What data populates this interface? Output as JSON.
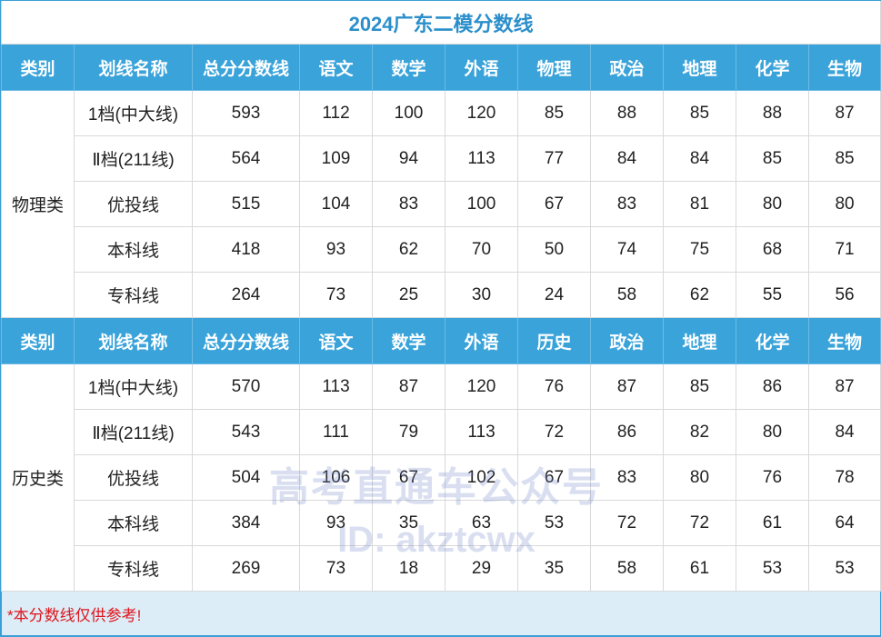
{
  "title": "2024广东二模分数线",
  "sections": [
    {
      "header": [
        "类别",
        "划线名称",
        "总分分数线",
        "语文",
        "数学",
        "外语",
        "物理",
        "政治",
        "地理",
        "化学",
        "生物"
      ],
      "category": "物理类",
      "rows": [
        [
          "1档(中大线)",
          593,
          112,
          100,
          120,
          85,
          88,
          85,
          88,
          87
        ],
        [
          "Ⅱ档(211线)",
          564,
          109,
          94,
          113,
          77,
          84,
          84,
          85,
          85
        ],
        [
          "优投线",
          515,
          104,
          83,
          100,
          67,
          83,
          81,
          80,
          80
        ],
        [
          "本科线",
          418,
          93,
          62,
          70,
          50,
          74,
          75,
          68,
          71
        ],
        [
          "专科线",
          264,
          73,
          25,
          30,
          24,
          58,
          62,
          55,
          56
        ]
      ]
    },
    {
      "header": [
        "类别",
        "划线名称",
        "总分分数线",
        "语文",
        "数学",
        "外语",
        "历史",
        "政治",
        "地理",
        "化学",
        "生物"
      ],
      "category": "历史类",
      "rows": [
        [
          "1档(中大线)",
          570,
          113,
          87,
          120,
          76,
          87,
          85,
          86,
          87
        ],
        [
          "Ⅱ档(211线)",
          543,
          111,
          79,
          113,
          72,
          86,
          82,
          80,
          84
        ],
        [
          "优投线",
          504,
          106,
          67,
          102,
          67,
          83,
          80,
          76,
          78
        ],
        [
          "本科线",
          384,
          93,
          35,
          63,
          53,
          72,
          72,
          61,
          64
        ],
        [
          "专科线",
          269,
          73,
          18,
          29,
          35,
          58,
          61,
          53,
          53
        ]
      ]
    }
  ],
  "footnote": "*本分数线仅供参考!",
  "watermark": [
    "高考直通车公众号",
    "ID: akztcwx"
  ]
}
